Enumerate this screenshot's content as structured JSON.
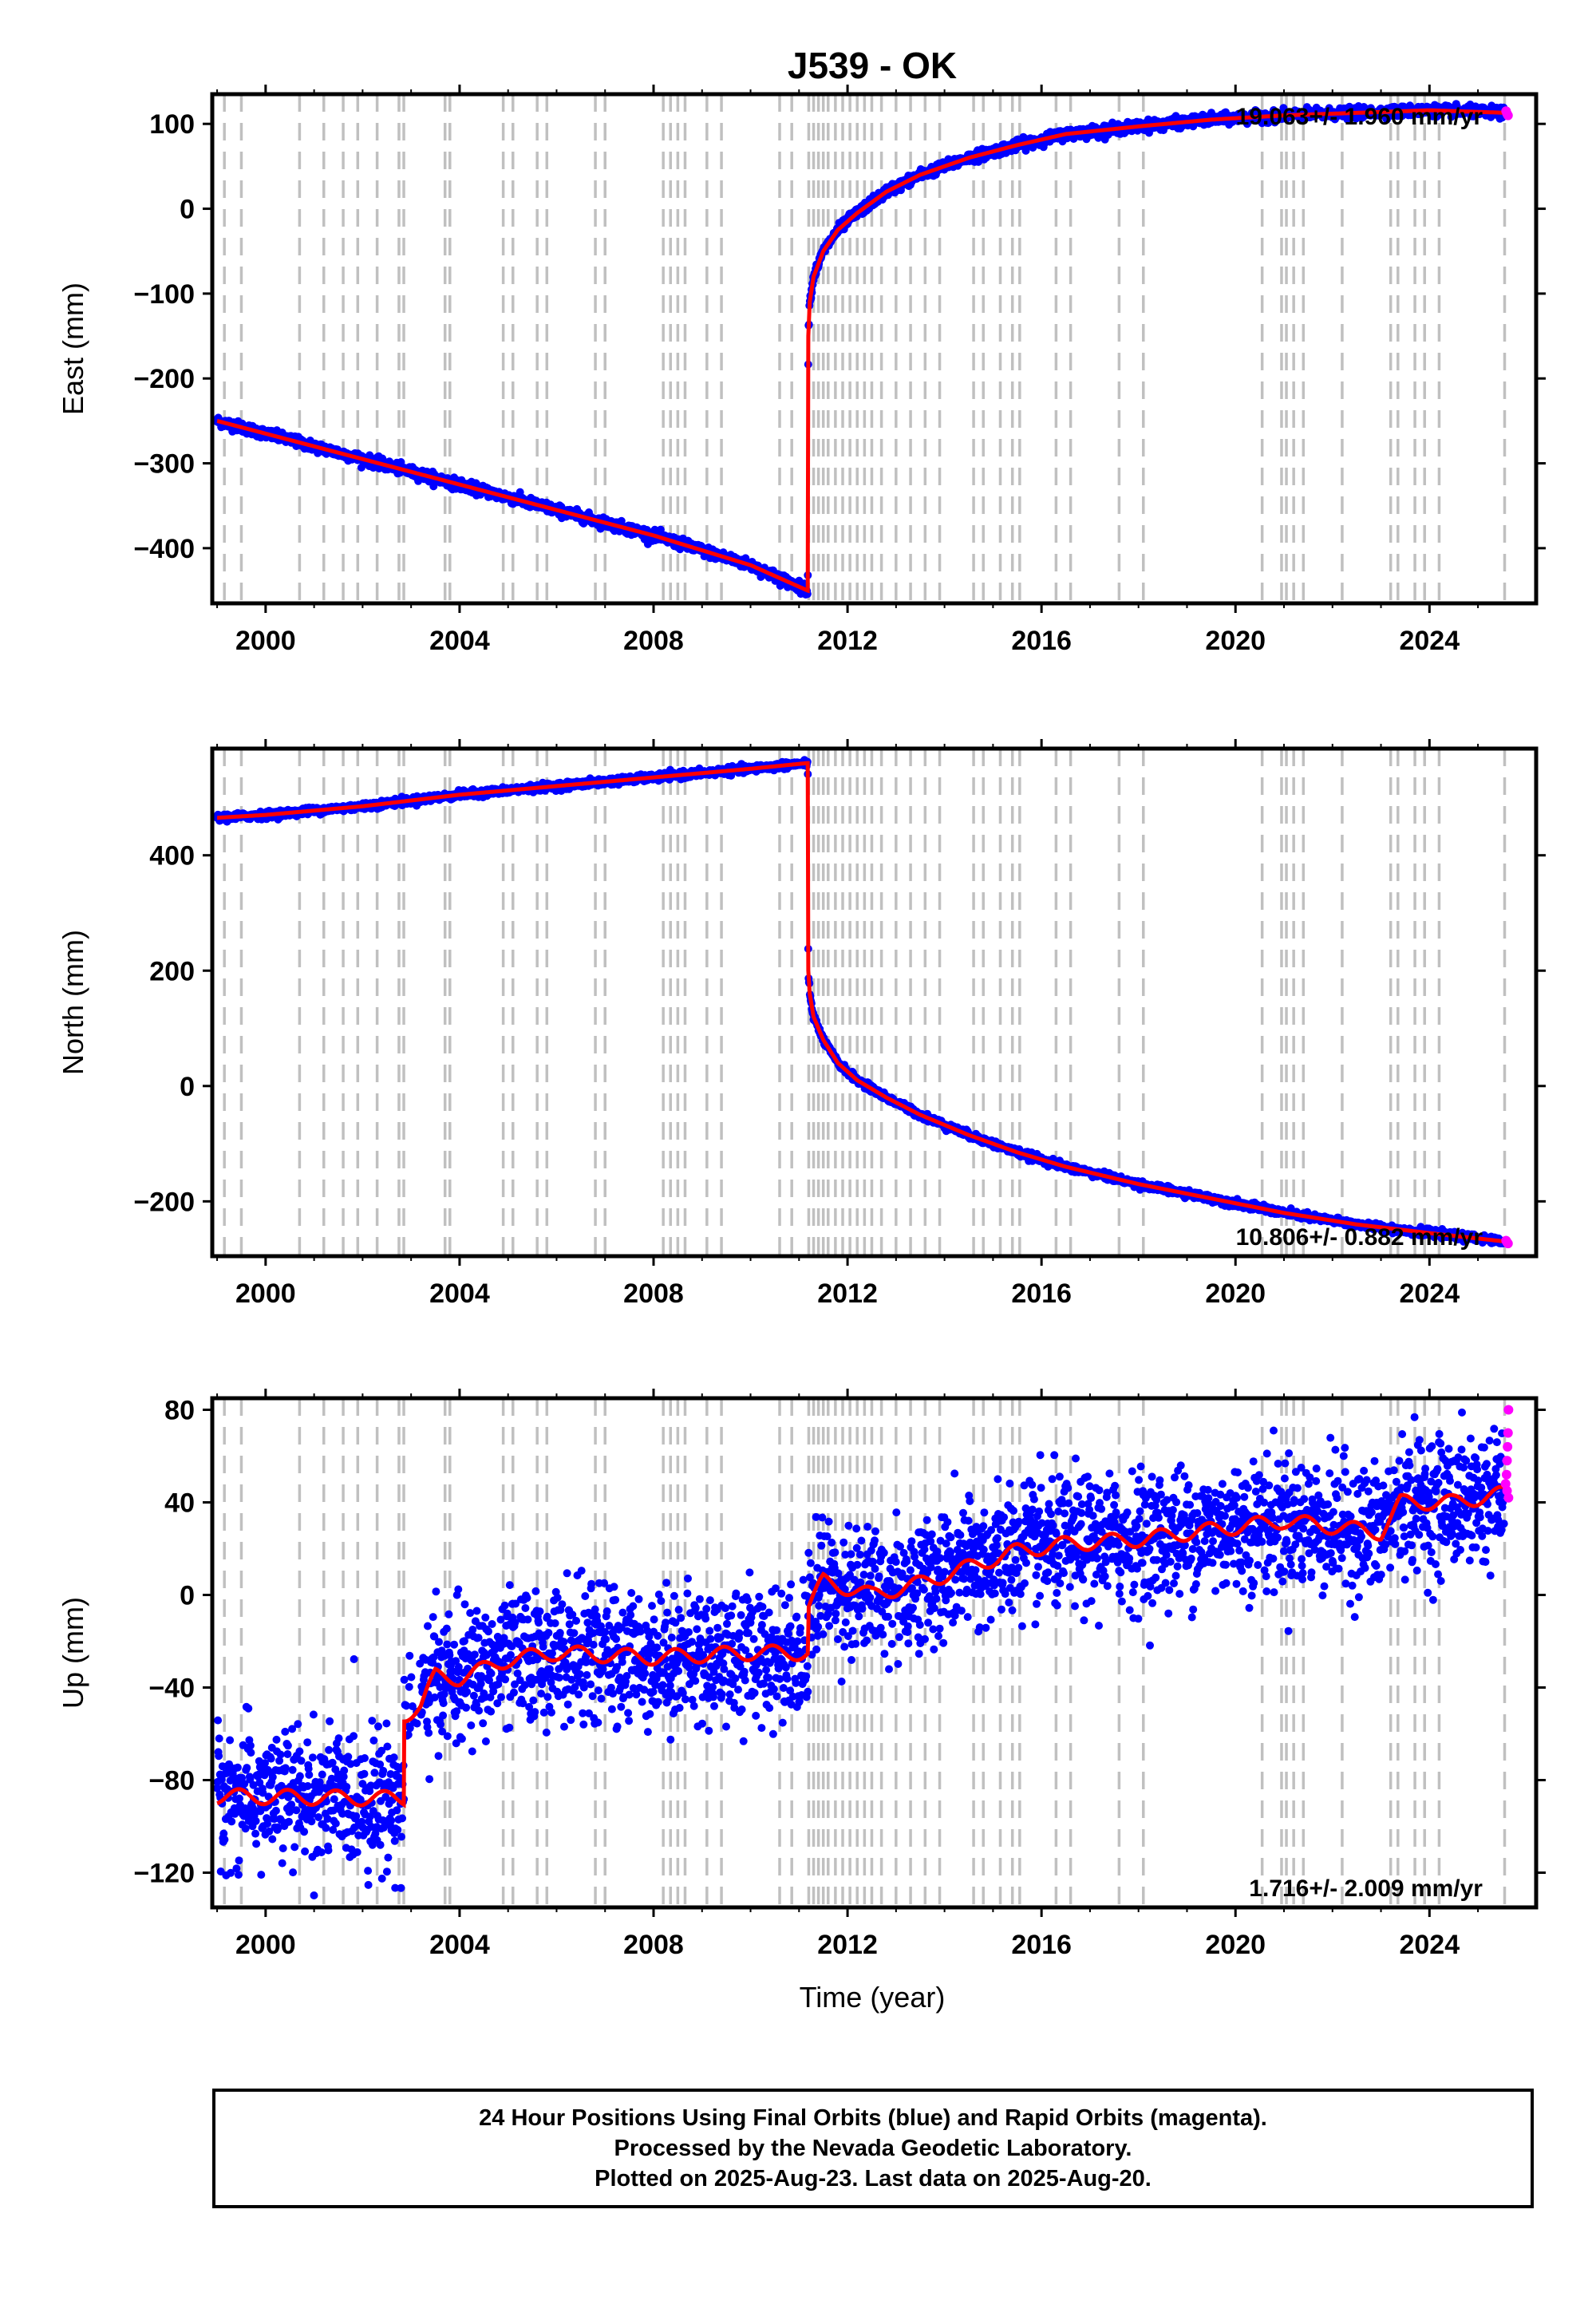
{
  "chart_data": {
    "type": "scatter",
    "title": "J539 - OK",
    "xlabel": "Time (year)",
    "xlim": [
      1998.9,
      2026.2
    ],
    "x_ticks": [
      2000,
      2004,
      2008,
      2012,
      2016,
      2020,
      2024
    ],
    "grid": false,
    "series_legend": {
      "final_orbits": "#0000ff",
      "rapid_orbits": "#ff00ff",
      "model": "#ff0000",
      "equipment_or_event_lines": "#c0c0c0"
    },
    "event_lines": [
      1999.15,
      1999.5,
      2000.7,
      2001.2,
      2001.6,
      2001.9,
      2002.3,
      2002.75,
      2002.85,
      2003.7,
      2003.8,
      2004.9,
      2005.1,
      2005.6,
      2005.8,
      2006.8,
      2007.0,
      2008.2,
      2008.35,
      2008.5,
      2008.65,
      2009.1,
      2009.4,
      2010.6,
      2010.85,
      2011.2,
      2011.3,
      2011.4,
      2011.5,
      2011.6,
      2011.75,
      2011.9,
      2012.05,
      2012.2,
      2012.35,
      2012.5,
      2012.7,
      2013.0,
      2013.3,
      2013.6,
      2013.9,
      2014.6,
      2014.8,
      2015.15,
      2015.4,
      2015.55,
      2016.3,
      2016.6,
      2017.6,
      2018.1,
      2020.55,
      2020.95,
      2021.05,
      2021.2,
      2021.4,
      2022.2,
      2023.2,
      2023.35,
      2023.7,
      2023.9,
      2024.2,
      2025.55
    ],
    "panels": [
      {
        "ylabel": "East (mm)",
        "ylim": [
          -465,
          135
        ],
        "y_ticks": [
          100,
          0,
          -100,
          -200,
          -300,
          -400
        ],
        "rate_label": "19.063+/- 1.960 mm/yr",
        "rate_position": "top-right",
        "scatter_noise": 3,
        "model_x": [
          1999.0,
          2000.0,
          2002.0,
          2004.0,
          2006.0,
          2008.0,
          2010.0,
          2011.18,
          2011.19,
          2011.22,
          2011.3,
          2011.5,
          2011.8,
          2012.2,
          2012.8,
          2013.5,
          2014.5,
          2015.5,
          2016.5,
          2018.0,
          2019.5,
          2021.0,
          2022.5,
          2024.0,
          2025.6
        ],
        "model_y": [
          -250,
          -265,
          -295,
          -325,
          -355,
          -385,
          -420,
          -450,
          -150,
          -110,
          -80,
          -50,
          -25,
          -5,
          20,
          40,
          60,
          75,
          88,
          97,
          105,
          110,
          113,
          116,
          113
        ],
        "rapid_points": [
          [
            2025.58,
            115
          ],
          [
            2025.6,
            112
          ],
          [
            2025.62,
            110
          ]
        ]
      },
      {
        "ylabel": "North (mm)",
        "ylim": [
          -295,
          585
        ],
        "y_ticks": [
          400,
          200,
          0,
          -200
        ],
        "rate_label": "10.806+/- 0.882 mm/yr",
        "rate_position": "bottom-right",
        "scatter_noise": 3,
        "model_x": [
          1999.0,
          2000.0,
          2002.0,
          2004.0,
          2006.0,
          2008.0,
          2010.0,
          2011.18,
          2011.19,
          2011.22,
          2011.3,
          2011.5,
          2011.8,
          2012.2,
          2012.8,
          2013.5,
          2014.5,
          2015.5,
          2016.5,
          2018.0,
          2019.5,
          2021.0,
          2022.5,
          2024.0,
          2025.6
        ],
        "model_y": [
          465,
          470,
          485,
          505,
          520,
          535,
          550,
          560,
          200,
          160,
          120,
          80,
          40,
          10,
          -20,
          -50,
          -85,
          -115,
          -140,
          -170,
          -195,
          -220,
          -240,
          -255,
          -270
        ],
        "rapid_points": [
          [
            2025.58,
            -268
          ],
          [
            2025.6,
            -271
          ],
          [
            2025.62,
            -273
          ]
        ]
      },
      {
        "ylabel": "Up (mm)",
        "ylim": [
          -135,
          85
        ],
        "y_ticks": [
          80,
          40,
          0,
          -40,
          -80,
          -120
        ],
        "rate_label": "1.716+/- 2.009 mm/yr",
        "rate_position": "bottom-right",
        "scatter_noise": 14,
        "model_x": [
          1999.0,
          2002.85,
          2002.86,
          2003.2,
          2003.5,
          2004.0,
          2005.0,
          2006.0,
          2008.0,
          2010.0,
          2011.18,
          2011.2,
          2011.5,
          2012.5,
          2013.5,
          2014.5,
          2015.5,
          2016.5,
          2018.0,
          2019.5,
          2021.0,
          2023.0,
          2023.4,
          2024.5,
          2025.6
        ],
        "model_y": [
          -87,
          -88,
          -52,
          -48,
          -35,
          -36,
          -28,
          -25,
          -27,
          -25,
          -25,
          -5,
          6,
          0,
          5,
          12,
          19,
          22,
          24,
          28,
          32,
          27,
          40,
          40,
          44
        ],
        "rapid_points": [
          [
            2025.57,
            48
          ],
          [
            2025.59,
            52
          ],
          [
            2025.6,
            58
          ],
          [
            2025.61,
            64
          ],
          [
            2025.62,
            70
          ],
          [
            2025.63,
            80
          ],
          [
            2025.6,
            45
          ],
          [
            2025.63,
            42
          ]
        ]
      }
    ]
  },
  "caption": {
    "line1": "24 Hour Positions Using Final Orbits (blue) and Rapid Orbits (magenta).",
    "line2": "Processed by the Nevada Geodetic Laboratory.",
    "line3": "Plotted on 2025-Aug-23. Last data on 2025-Aug-20."
  }
}
